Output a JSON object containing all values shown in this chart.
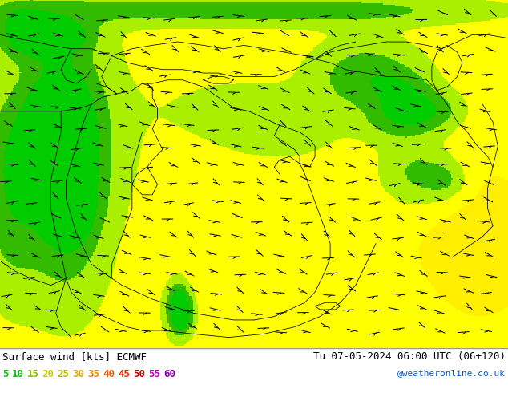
{
  "title_left": "Surface wind [kts] ECMWF",
  "title_right": "Tu 07-05-2024 06:00 UTC (06+120)",
  "credit": "@weatheronline.co.uk",
  "legend_values": [
    "5",
    "10",
    "15",
    "20",
    "25",
    "30",
    "35",
    "40",
    "45",
    "50",
    "55",
    "60"
  ],
  "legend_text_colors": [
    "#00cc00",
    "#00cc00",
    "#88bb00",
    "#cccc00",
    "#bbbb00",
    "#ddaa00",
    "#ee8800",
    "#ee5500",
    "#ee2200",
    "#cc0000",
    "#cc00cc",
    "#8800aa"
  ],
  "wind_levels": [
    0,
    5,
    10,
    15,
    20,
    25,
    30,
    35,
    40,
    45,
    50,
    55,
    60,
    100
  ],
  "wind_colors": [
    "#ffff00",
    "#00cc00",
    "#33bb00",
    "#aaee00",
    "#ffff00",
    "#ffee00",
    "#ffcc00",
    "#ffaa00",
    "#ff7700",
    "#ff3300",
    "#cc0000",
    "#aa00aa",
    "#660066"
  ],
  "figsize": [
    6.34,
    4.9
  ],
  "dpi": 100,
  "map_bg": "#ffff00",
  "bottom_line_color": "#888888"
}
